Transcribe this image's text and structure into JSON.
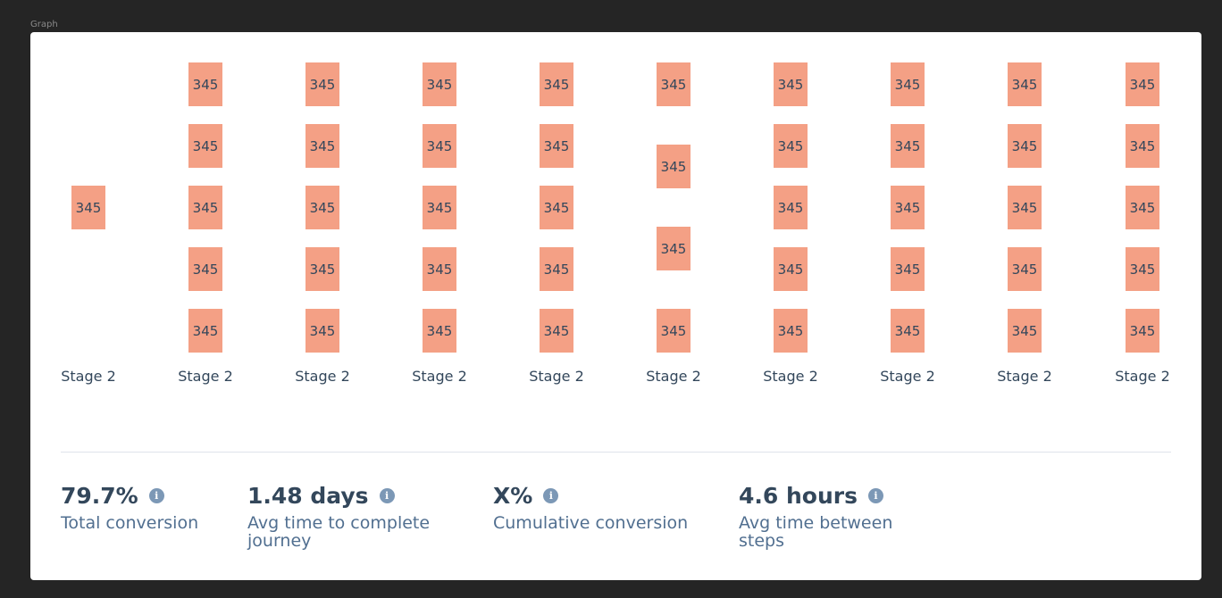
{
  "frame_title": "Graph",
  "node_color": "#f4a085",
  "stages": [
    {
      "label": "Stage 2",
      "nodes": [
        "345"
      ]
    },
    {
      "label": "Stage 2",
      "nodes": [
        "345",
        "345",
        "345",
        "345",
        "345"
      ]
    },
    {
      "label": "Stage 2",
      "nodes": [
        "345",
        "345",
        "345",
        "345",
        "345"
      ]
    },
    {
      "label": "Stage 2",
      "nodes": [
        "345",
        "345",
        "345",
        "345",
        "345"
      ]
    },
    {
      "label": "Stage 2",
      "nodes": [
        "345",
        "345",
        "345",
        "345",
        "345"
      ]
    },
    {
      "label": "Stage 2",
      "nodes": [
        "345",
        "345",
        "345",
        "345"
      ]
    },
    {
      "label": "Stage 2",
      "nodes": [
        "345",
        "345",
        "345",
        "345",
        "345"
      ]
    },
    {
      "label": "Stage 2",
      "nodes": [
        "345",
        "345",
        "345",
        "345",
        "345"
      ]
    },
    {
      "label": "Stage 2",
      "nodes": [
        "345",
        "345",
        "345",
        "345",
        "345"
      ]
    },
    {
      "label": "Stage 2",
      "nodes": [
        "345",
        "345",
        "345",
        "345",
        "345"
      ]
    }
  ],
  "metrics": [
    {
      "value": "79.7%",
      "label": "Total conversion",
      "icon": "info-icon"
    },
    {
      "value": "1.48 days",
      "label": "Avg time to complete journey",
      "icon": "info-icon"
    },
    {
      "value": "X%",
      "label": "Cumulative conversion",
      "icon": "info-icon"
    },
    {
      "value": "4.6 hours",
      "label": "Avg time between steps",
      "icon": "info-icon"
    }
  ]
}
